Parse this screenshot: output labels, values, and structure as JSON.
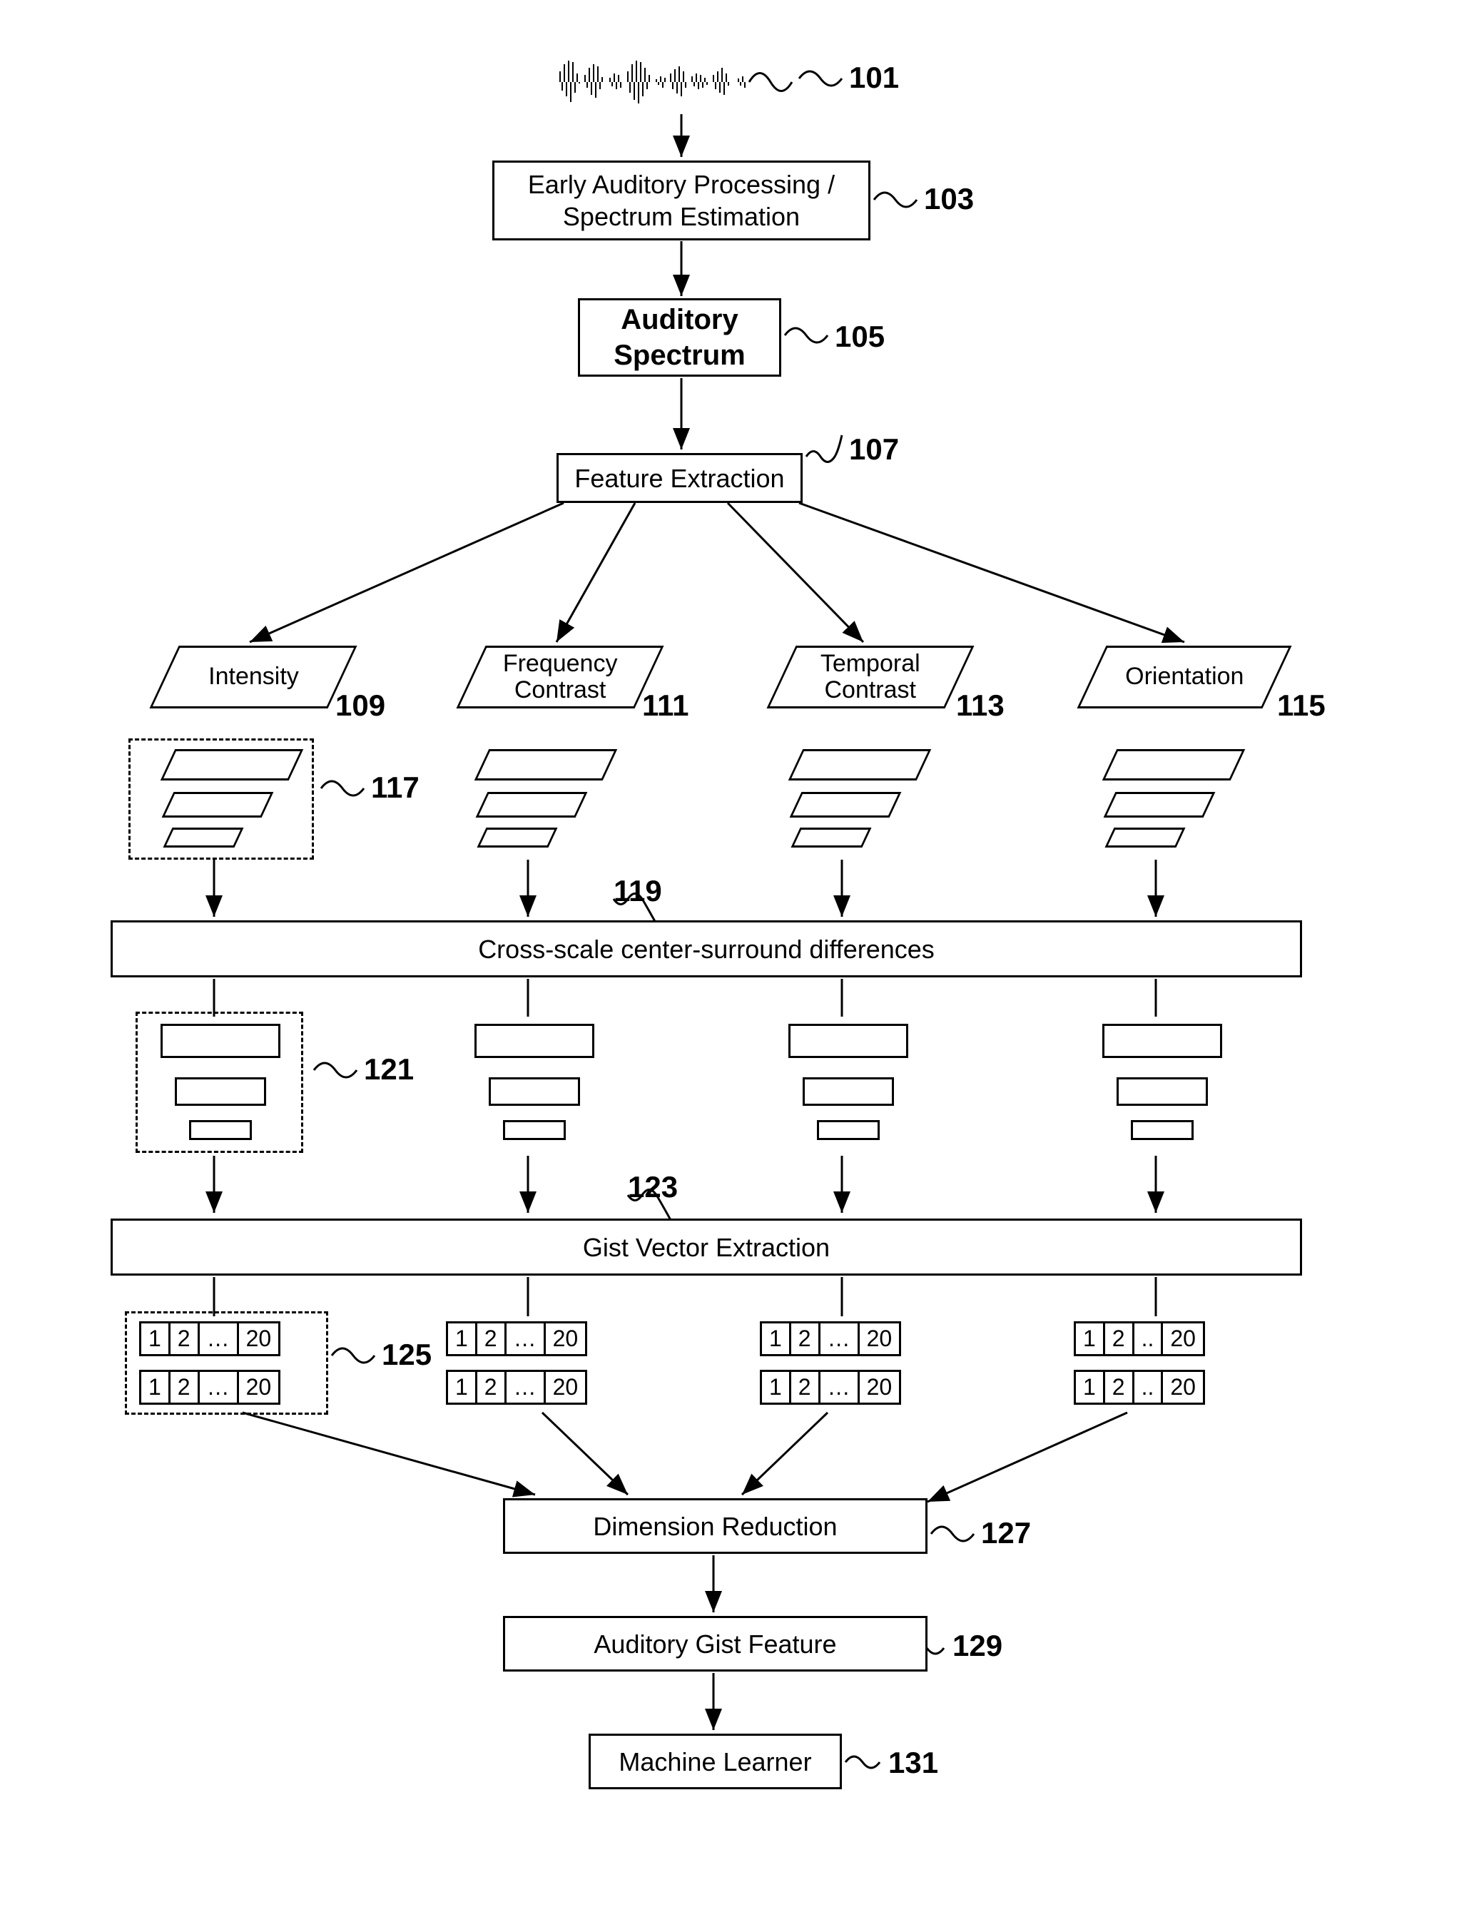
{
  "type": "flowchart",
  "background_color": "#ffffff",
  "line_color": "#000000",
  "font_family": "Arial",
  "nodes": {
    "n101": {
      "label_num": "101"
    },
    "n103": {
      "text": "Early Auditory Processing /\nSpectrum Estimation",
      "label_num": "103"
    },
    "n105": {
      "text": "Auditory\nSpectrum",
      "label_num": "105",
      "bold": true
    },
    "n107": {
      "text": "Feature Extraction",
      "label_num": "107"
    },
    "n109": {
      "text": "Intensity",
      "label_num": "109"
    },
    "n111": {
      "text": "Frequency\nContrast",
      "label_num": "111"
    },
    "n113": {
      "text": "Temporal\nContrast",
      "label_num": "113"
    },
    "n115": {
      "text": "Orientation",
      "label_num": "115"
    },
    "n117": {
      "label_num": "117"
    },
    "n119": {
      "text": "Cross-scale center-surround differences",
      "label_num": "119"
    },
    "n121": {
      "label_num": "121"
    },
    "n123": {
      "text": "Gist Vector Extraction",
      "label_num": "123"
    },
    "n125": {
      "label_num": "125"
    },
    "n127": {
      "text": "Dimension Reduction",
      "label_num": "127"
    },
    "n129": {
      "text": "Auditory Gist Feature",
      "label_num": "129"
    },
    "n131": {
      "text": "Machine Learner",
      "label_num": "131"
    }
  },
  "vector_cells": {
    "c1": "1",
    "c2": "2",
    "c3": "…",
    "c4": "..",
    "c5": "20"
  },
  "styling": {
    "box_border_width": 3,
    "box_border_color": "#000000",
    "box_background": "#ffffff",
    "label_font_size": 42,
    "label_font_weight": 700,
    "node_font_size": 36,
    "parallelogram_skew_deg": -25,
    "dash_border": "3px dashed #000000",
    "arrow_stroke_width": 3,
    "arrow_head": "10 4 0 8"
  }
}
